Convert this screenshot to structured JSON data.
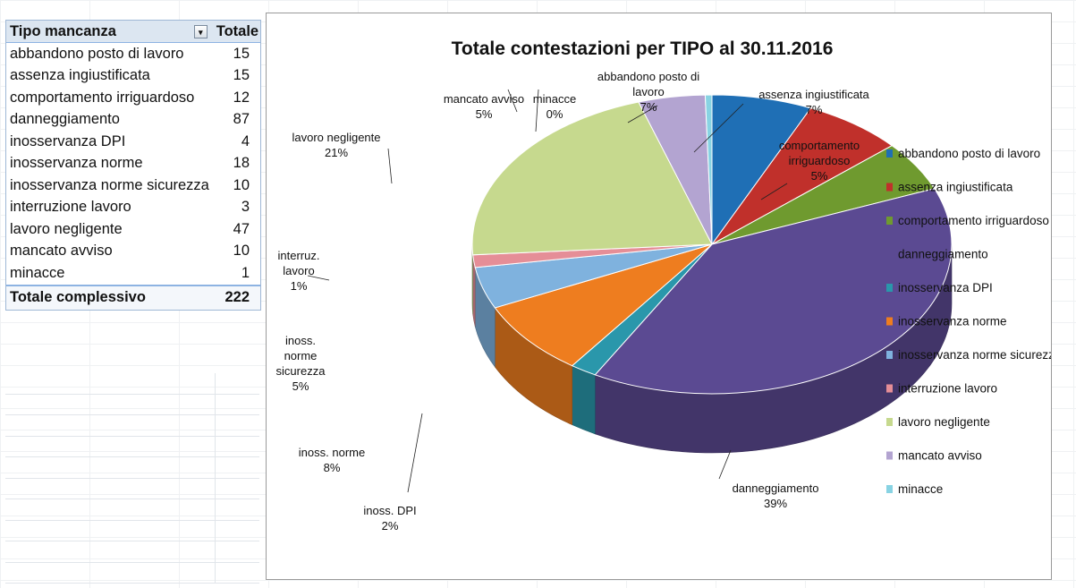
{
  "pivot": {
    "header_label": "Tipo mancanza",
    "header_total": "Totale",
    "rows": [
      {
        "label": "abbandono posto di lavoro",
        "value": "15"
      },
      {
        "label": "assenza ingiustificata",
        "value": "15"
      },
      {
        "label": "comportamento irriguardoso",
        "value": "12"
      },
      {
        "label": "danneggiamento",
        "value": "87"
      },
      {
        "label": "inosservanza DPI",
        "value": "4"
      },
      {
        "label": "inosservanza norme",
        "value": "18"
      },
      {
        "label": "inosservanza norme sicurezza",
        "value": "10"
      },
      {
        "label": "interruzione lavoro",
        "value": "3"
      },
      {
        "label": "lavoro negligente",
        "value": "47"
      },
      {
        "label": "mancato avviso",
        "value": "10"
      },
      {
        "label": "minacce",
        "value": "1"
      }
    ],
    "total_label": "Totale complessivo",
    "total_value": "222"
  },
  "chart_data": {
    "type": "pie",
    "title": "Totale contestazioni per TIPO al 30.11.2016",
    "legend_position": "right",
    "slices": [
      {
        "name": "abbandono posto di lavoro",
        "value": 15,
        "pct": "7%",
        "label": [
          "abbandono posto di",
          "lavoro",
          "7%"
        ],
        "color": "#1f6fb5"
      },
      {
        "name": "assenza ingiustificata",
        "value": 15,
        "pct": "7%",
        "label": [
          "assenza ingiustificata",
          "7%"
        ],
        "color": "#c0302b"
      },
      {
        "name": "comportamento irriguardoso",
        "value": 12,
        "pct": "5%",
        "label": [
          "comportamento",
          "irriguardoso",
          "5%"
        ],
        "color": "#6f9a2f"
      },
      {
        "name": "danneggiamento",
        "value": 87,
        "pct": "39%",
        "label": [
          "danneggiamento",
          "39%"
        ],
        "color": "#5b4a92"
      },
      {
        "name": "inosservanza DPI",
        "value": 4,
        "pct": "2%",
        "label": [
          "inoss. DPI",
          "2%"
        ],
        "color": "#2a97ab"
      },
      {
        "name": "inosservanza norme",
        "value": 18,
        "pct": "8%",
        "label": [
          "inoss. norme",
          "8%"
        ],
        "color": "#ee7d1f"
      },
      {
        "name": "inosservanza norme sicurezza",
        "value": 10,
        "pct": "5%",
        "label": [
          "inoss.",
          "norme",
          "sicurezza",
          "5%"
        ],
        "color": "#7fb2de"
      },
      {
        "name": "interruzione lavoro",
        "value": 3,
        "pct": "1%",
        "label": [
          "interruz.",
          "lavoro",
          "1%"
        ],
        "color": "#e58e97"
      },
      {
        "name": "lavoro negligente",
        "value": 47,
        "pct": "21%",
        "label": [
          "lavoro negligente",
          "21%"
        ],
        "color": "#c6d98e"
      },
      {
        "name": "mancato avviso",
        "value": 10,
        "pct": "5%",
        "label": [
          "mancato avviso",
          "5%"
        ],
        "color": "#b3a4d1"
      },
      {
        "name": "minacce",
        "value": 1,
        "pct": "0%",
        "label": [
          "minacce",
          "0%"
        ],
        "color": "#88d3e3"
      }
    ]
  }
}
